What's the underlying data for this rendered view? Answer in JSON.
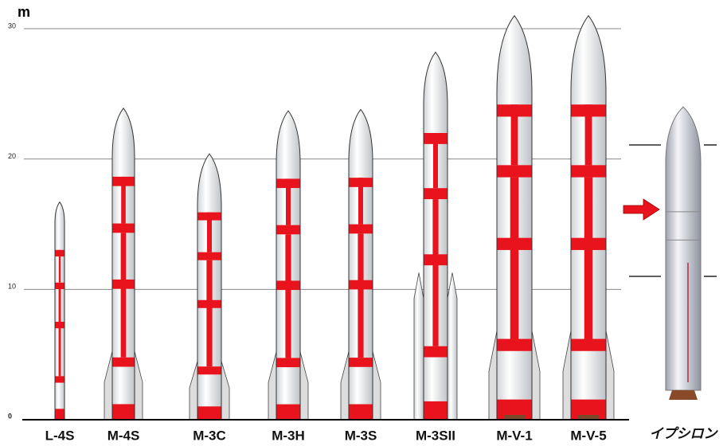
{
  "chart_data": {
    "type": "rocket",
    "axis_label": "m",
    "categories": [
      "L-4S",
      "M-4S",
      "M-3C",
      "M-3H",
      "M-3S",
      "M-3SII",
      "M-V-1",
      "M-V-5",
      "イプシロン"
    ],
    "values": [
      16.7,
      23.9,
      20.4,
      23.7,
      23.8,
      28.2,
      31.0,
      31.0,
      24.0
    ],
    "ylim": [
      0,
      32.2
    ],
    "yticks": [
      {
        "value": 0,
        "label": "0"
      },
      10,
      20,
      30
    ],
    "grid": true,
    "color": "#e8131c"
  }
}
